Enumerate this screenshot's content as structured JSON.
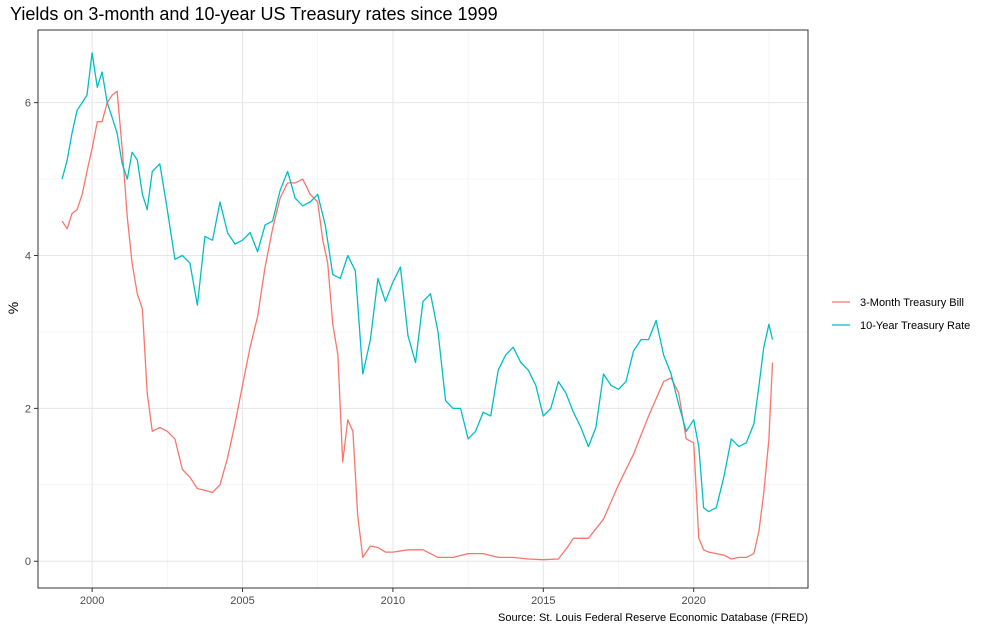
{
  "chart_data": {
    "type": "line",
    "title": "Yields on 3-month and 10-year US Treasury rates since 1999",
    "xlabel": "",
    "ylabel": "%",
    "caption": "Source: St. Louis Federal Reserve Economic Database (FRED)",
    "xlim": [
      1998.2,
      2023.8
    ],
    "ylim": [
      -0.35,
      6.95
    ],
    "x_ticks": [
      2000,
      2005,
      2010,
      2015,
      2020
    ],
    "y_ticks": [
      0,
      2,
      4,
      6
    ],
    "grid": true,
    "legend_position": "right",
    "series": [
      {
        "name": "3-Month Treasury Bill",
        "color": "#F8766D",
        "x": [
          1999.0,
          1999.17,
          1999.33,
          1999.5,
          1999.67,
          1999.83,
          2000.0,
          2000.17,
          2000.33,
          2000.5,
          2000.67,
          2000.83,
          2001.0,
          2001.17,
          2001.33,
          2001.5,
          2001.67,
          2001.83,
          2002.0,
          2002.25,
          2002.5,
          2002.75,
          2003.0,
          2003.25,
          2003.5,
          2003.75,
          2004.0,
          2004.25,
          2004.5,
          2004.75,
          2005.0,
          2005.25,
          2005.5,
          2005.75,
          2006.0,
          2006.25,
          2006.5,
          2006.75,
          2007.0,
          2007.25,
          2007.5,
          2007.67,
          2007.83,
          2008.0,
          2008.17,
          2008.33,
          2008.5,
          2008.67,
          2008.83,
          2009.0,
          2009.25,
          2009.5,
          2009.75,
          2010.0,
          2010.5,
          2011.0,
          2011.5,
          2012.0,
          2012.5,
          2013.0,
          2013.5,
          2014.0,
          2014.5,
          2015.0,
          2015.5,
          2015.83,
          2016.0,
          2016.5,
          2017.0,
          2017.5,
          2018.0,
          2018.5,
          2019.0,
          2019.25,
          2019.5,
          2019.75,
          2020.0,
          2020.17,
          2020.33,
          2020.5,
          2020.75,
          2021.0,
          2021.25,
          2021.5,
          2021.75,
          2022.0,
          2022.17,
          2022.33,
          2022.5,
          2022.62
        ],
        "values": [
          4.45,
          4.35,
          4.55,
          4.6,
          4.8,
          5.1,
          5.4,
          5.75,
          5.75,
          6.0,
          6.1,
          6.15,
          5.4,
          4.5,
          3.9,
          3.5,
          3.3,
          2.2,
          1.7,
          1.75,
          1.7,
          1.6,
          1.2,
          1.1,
          0.95,
          0.93,
          0.9,
          1.0,
          1.35,
          1.8,
          2.3,
          2.8,
          3.2,
          3.85,
          4.35,
          4.75,
          4.95,
          4.95,
          5.0,
          4.8,
          4.7,
          4.2,
          3.9,
          3.1,
          2.7,
          1.3,
          1.85,
          1.7,
          0.6,
          0.05,
          0.2,
          0.18,
          0.12,
          0.12,
          0.15,
          0.15,
          0.05,
          0.05,
          0.1,
          0.1,
          0.05,
          0.05,
          0.03,
          0.02,
          0.03,
          0.2,
          0.3,
          0.3,
          0.55,
          1.0,
          1.4,
          1.9,
          2.35,
          2.4,
          2.2,
          1.6,
          1.55,
          0.3,
          0.15,
          0.12,
          0.1,
          0.08,
          0.03,
          0.05,
          0.05,
          0.1,
          0.4,
          0.9,
          1.6,
          2.6
        ]
      },
      {
        "name": "10-Year Treasury Rate",
        "color": "#00BFC4",
        "x": [
          1999.0,
          1999.17,
          1999.33,
          1999.5,
          1999.67,
          1999.83,
          2000.0,
          2000.17,
          2000.33,
          2000.5,
          2000.67,
          2000.83,
          2001.0,
          2001.17,
          2001.33,
          2001.5,
          2001.67,
          2001.83,
          2002.0,
          2002.25,
          2002.5,
          2002.75,
          2003.0,
          2003.25,
          2003.5,
          2003.75,
          2004.0,
          2004.25,
          2004.5,
          2004.75,
          2005.0,
          2005.25,
          2005.5,
          2005.75,
          2006.0,
          2006.25,
          2006.5,
          2006.75,
          2007.0,
          2007.25,
          2007.5,
          2007.75,
          2008.0,
          2008.25,
          2008.5,
          2008.75,
          2009.0,
          2009.25,
          2009.5,
          2009.75,
          2010.0,
          2010.25,
          2010.5,
          2010.75,
          2011.0,
          2011.25,
          2011.5,
          2011.75,
          2012.0,
          2012.25,
          2012.5,
          2012.75,
          2013.0,
          2013.25,
          2013.5,
          2013.75,
          2014.0,
          2014.25,
          2014.5,
          2014.75,
          2015.0,
          2015.25,
          2015.5,
          2015.75,
          2016.0,
          2016.25,
          2016.5,
          2016.75,
          2017.0,
          2017.25,
          2017.5,
          2017.75,
          2018.0,
          2018.25,
          2018.5,
          2018.75,
          2019.0,
          2019.25,
          2019.5,
          2019.75,
          2020.0,
          2020.17,
          2020.33,
          2020.5,
          2020.75,
          2021.0,
          2021.25,
          2021.5,
          2021.75,
          2022.0,
          2022.17,
          2022.33,
          2022.5,
          2022.62
        ],
        "values": [
          5.0,
          5.25,
          5.6,
          5.9,
          6.0,
          6.1,
          6.65,
          6.2,
          6.4,
          6.0,
          5.8,
          5.6,
          5.2,
          5.0,
          5.35,
          5.25,
          4.8,
          4.6,
          5.1,
          5.2,
          4.6,
          3.95,
          4.0,
          3.9,
          3.35,
          4.25,
          4.2,
          4.7,
          4.3,
          4.15,
          4.2,
          4.3,
          4.05,
          4.4,
          4.45,
          4.85,
          5.1,
          4.75,
          4.65,
          4.7,
          4.8,
          4.4,
          3.75,
          3.7,
          4.0,
          3.8,
          2.45,
          2.9,
          3.7,
          3.4,
          3.65,
          3.85,
          2.95,
          2.6,
          3.4,
          3.5,
          3.0,
          2.1,
          2.0,
          2.0,
          1.6,
          1.7,
          1.95,
          1.9,
          2.5,
          2.7,
          2.8,
          2.6,
          2.5,
          2.3,
          1.9,
          2.0,
          2.35,
          2.2,
          1.95,
          1.75,
          1.5,
          1.75,
          2.45,
          2.3,
          2.25,
          2.35,
          2.75,
          2.9,
          2.9,
          3.15,
          2.7,
          2.45,
          2.05,
          1.7,
          1.85,
          1.5,
          0.7,
          0.65,
          0.7,
          1.1,
          1.6,
          1.5,
          1.55,
          1.8,
          2.3,
          2.8,
          3.1,
          2.9
        ]
      }
    ]
  }
}
